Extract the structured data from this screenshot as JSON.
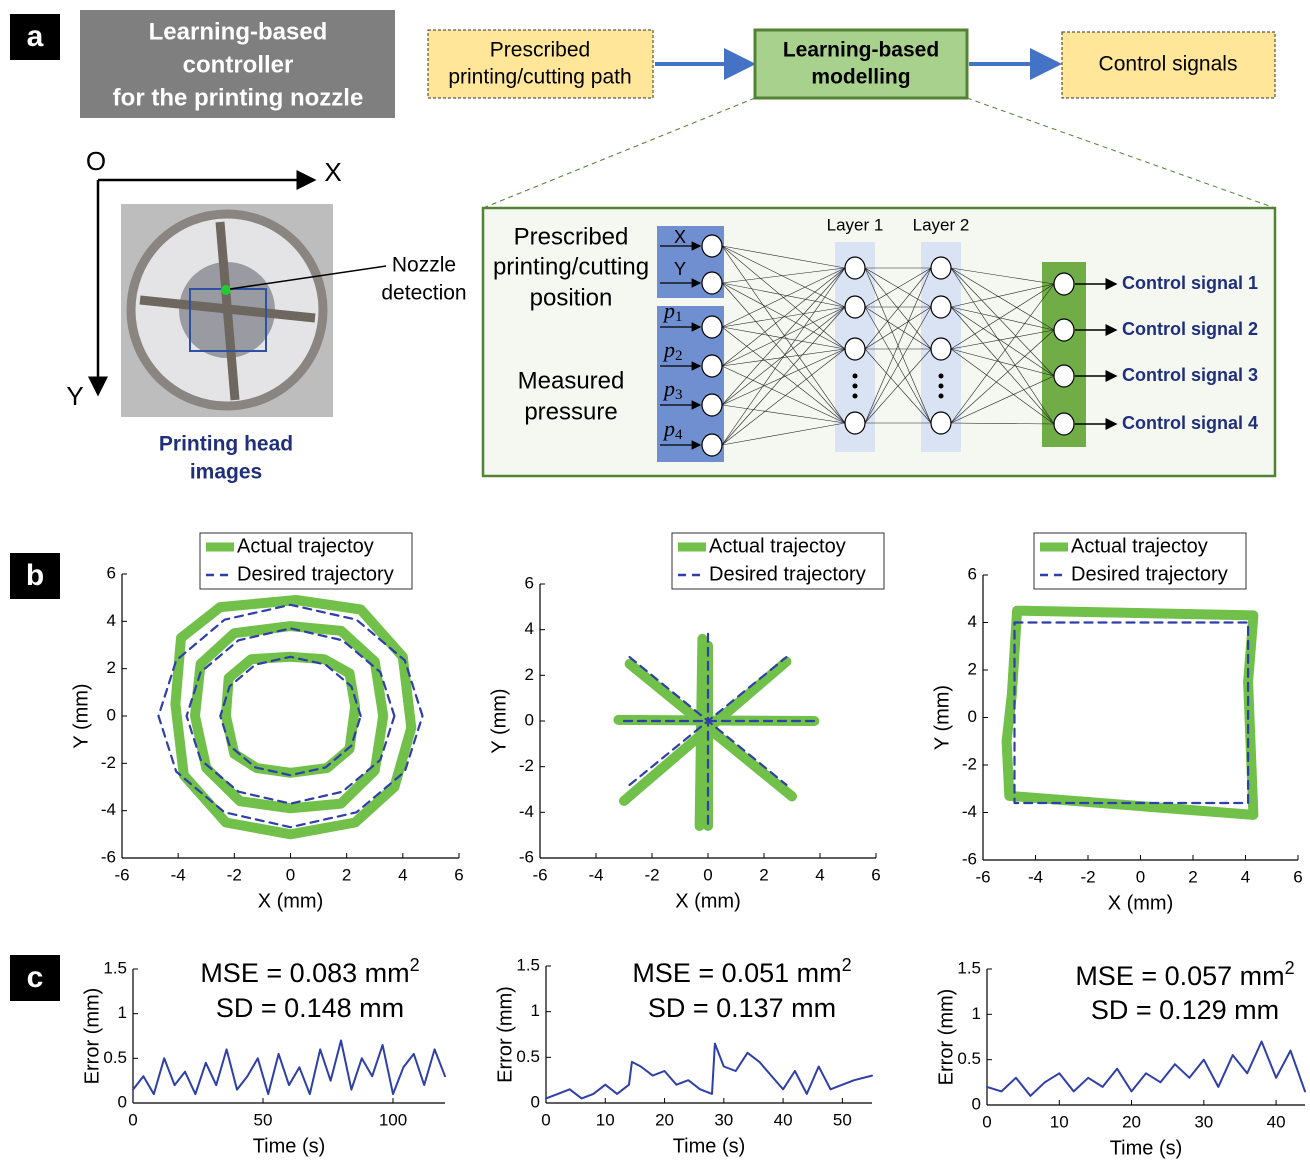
{
  "panel_labels": [
    "a",
    "b",
    "c"
  ],
  "controller_title": [
    "Learning-based",
    "controller",
    "for the printing nozzle"
  ],
  "flow": {
    "input": [
      "Prescribed",
      "printing/cutting path"
    ],
    "model": [
      "Learning-based",
      "modelling"
    ],
    "output": "Control signals"
  },
  "head": {
    "origin": "O",
    "x_axis": "X",
    "y_axis": "Y",
    "callout": [
      "Nozzle",
      "detection"
    ],
    "caption": [
      "Printing head",
      "images"
    ]
  },
  "network": {
    "position_label": [
      "Prescribed",
      "printing/cutting",
      "position"
    ],
    "pressure_label": [
      "Measured",
      "pressure"
    ],
    "inputs": [
      "X",
      "Y"
    ],
    "pressures": [
      {
        "base": "p",
        "sub": "1"
      },
      {
        "base": "p",
        "sub": "2"
      },
      {
        "base": "p",
        "sub": "3"
      },
      {
        "base": "p",
        "sub": "4"
      }
    ],
    "layers": [
      "Layer 1",
      "Layer 2"
    ],
    "outputs": [
      "Control signal 1",
      "Control signal 2",
      "Control signal 3",
      "Control signal 4"
    ]
  },
  "chart_data": [
    {
      "type": "line",
      "xlabel": "X (mm)",
      "ylabel": "Y (mm)",
      "xlim": [
        -6,
        6
      ],
      "ylim": [
        -6,
        6
      ],
      "xticks": [
        -6,
        -4,
        -2,
        0,
        2,
        4,
        6
      ],
      "yticks": [
        -6,
        -4,
        -2,
        0,
        2,
        4,
        6
      ],
      "series": [
        {
          "name": "Actual trajectoy",
          "color": "#70c04a",
          "style": "solid",
          "x": [
            4.3,
            4.0,
            2.5,
            0.2,
            -2.5,
            -3.9,
            -4.1,
            -3.8,
            -2.3,
            0,
            2.3,
            3.7,
            4.3,
            null,
            3.3,
            3.0,
            1.8,
            0,
            -2,
            -3.2,
            -3.4,
            -3.0,
            -1.8,
            0,
            1.8,
            3.0,
            3.3,
            null,
            2.3,
            2.1,
            1.2,
            0,
            -1.4,
            -2.2,
            -2.3,
            -2.0,
            -1.2,
            0,
            1.3,
            2.1,
            2.3
          ],
          "values": [
            -0.5,
            2.5,
            4.5,
            4.9,
            4.6,
            3.3,
            0.5,
            -2.5,
            -4.5,
            -5.0,
            -4.5,
            -3.0,
            -0.5,
            null,
            0,
            2.3,
            3.6,
            3.8,
            3.5,
            2.2,
            0,
            -2.2,
            -3.6,
            -3.9,
            -3.7,
            -2.3,
            0,
            null,
            0.4,
            1.8,
            2.4,
            2.5,
            2.4,
            1.6,
            0,
            -1.6,
            -2.2,
            -2.4,
            -2.2,
            -1.4,
            0.4
          ]
        },
        {
          "name": "Desired trajectory",
          "color": "#2f3fa8",
          "style": "dashed",
          "x": [
            4.7,
            4.07,
            2.35,
            0,
            -2.35,
            -4.07,
            -4.7,
            -4.07,
            -2.35,
            0,
            2.35,
            4.07,
            4.7,
            null,
            3.7,
            3.2,
            1.85,
            0,
            -1.85,
            -3.2,
            -3.7,
            -3.2,
            -1.85,
            0,
            1.85,
            3.2,
            3.7,
            null,
            2.5,
            2.17,
            1.25,
            0,
            -1.25,
            -2.17,
            -2.5,
            -2.17,
            -1.25,
            0,
            1.25,
            2.17,
            2.5
          ],
          "values": [
            0,
            2.35,
            4.07,
            4.7,
            4.07,
            2.35,
            0,
            -2.35,
            -4.07,
            -4.7,
            -4.07,
            -2.35,
            0,
            null,
            0,
            1.85,
            3.2,
            3.7,
            3.2,
            1.85,
            0,
            -1.85,
            -3.2,
            -3.7,
            -3.2,
            -1.85,
            0,
            null,
            0,
            1.25,
            2.17,
            2.5,
            2.17,
            1.25,
            0,
            -1.25,
            -2.17,
            -2.5,
            -2.17,
            -1.25,
            0
          ]
        }
      ]
    },
    {
      "type": "line",
      "xlabel": "X (mm)",
      "ylabel": "Y (mm)",
      "xlim": [
        -6,
        6
      ],
      "ylim": [
        -6,
        6
      ],
      "xticks": [
        -6,
        -4,
        -2,
        0,
        2,
        4,
        6
      ],
      "yticks": [
        -6,
        -4,
        -2,
        0,
        2,
        4,
        6
      ],
      "series": [
        {
          "name": "Actual trajectoy",
          "color": "#70c04a",
          "style": "solid",
          "x": [
            -3.2,
            3.8,
            null,
            -0.3,
            -0.2,
            null,
            -3,
            2.8,
            null,
            -2.8,
            3,
            null,
            0,
            0
          ],
          "values": [
            0.05,
            0,
            null,
            -4.6,
            3.6,
            null,
            -3.5,
            2.6,
            null,
            2.5,
            -3.3,
            null,
            3.3,
            -4.6
          ]
        },
        {
          "name": "Desired trajectory",
          "color": "#2f3fa8",
          "style": "dashed",
          "x": [
            -3,
            3.8,
            null,
            0,
            0,
            null,
            -2.8,
            2.8,
            null,
            -2.8,
            2.8
          ],
          "values": [
            0,
            0,
            null,
            -4.5,
            4,
            null,
            -2.8,
            2.8,
            null,
            2.8,
            -2.8
          ]
        }
      ]
    },
    {
      "type": "line",
      "xlabel": "X (mm)",
      "ylabel": "Y (mm)",
      "xlim": [
        -6,
        6
      ],
      "ylim": [
        -6,
        6
      ],
      "xticks": [
        -6,
        -4,
        -2,
        0,
        2,
        4,
        6
      ],
      "yticks": [
        -6,
        -4,
        -2,
        0,
        2,
        4,
        6
      ],
      "series": [
        {
          "name": "Actual trajectoy",
          "color": "#70c04a",
          "style": "solid",
          "x": [
            -4.7,
            4.3,
            4.1,
            4.3,
            -5,
            -5.1,
            -4.9,
            -4.7
          ],
          "values": [
            4.5,
            4.3,
            1.5,
            -4.1,
            -3.3,
            -1,
            1,
            4.5
          ]
        },
        {
          "name": "Desired trajectory",
          "color": "#2f3fa8",
          "style": "dashed",
          "x": [
            -4.8,
            4.1,
            4.1,
            -4.8,
            -4.8
          ],
          "values": [
            4,
            4,
            -3.6,
            -3.6,
            4
          ]
        }
      ]
    },
    {
      "type": "line",
      "xlabel": "Time (s)",
      "ylabel": "Error (mm)",
      "xlim": [
        0,
        120
      ],
      "ylim": [
        0,
        1.5
      ],
      "xticks": [
        0,
        50,
        100
      ],
      "yticks": [
        0,
        0.5,
        1,
        1.5
      ],
      "annotation": {
        "mse": "MSE = 0.083 mm",
        "exponent": "2",
        "sd": "SD = 0.148 mm"
      },
      "x": [
        0,
        4,
        8,
        12,
        16,
        20,
        24,
        28,
        32,
        36,
        40,
        44,
        48,
        52,
        56,
        60,
        64,
        68,
        72,
        76,
        80,
        84,
        88,
        92,
        96,
        100,
        104,
        108,
        112,
        116,
        120
      ],
      "series": [
        {
          "color": "#2f3fa8",
          "values": [
            0.15,
            0.3,
            0.1,
            0.5,
            0.2,
            0.35,
            0.1,
            0.45,
            0.2,
            0.6,
            0.15,
            0.3,
            0.5,
            0.1,
            0.55,
            0.2,
            0.4,
            0.1,
            0.6,
            0.25,
            0.7,
            0.15,
            0.5,
            0.3,
            0.65,
            0.1,
            0.4,
            0.55,
            0.2,
            0.6,
            0.3
          ]
        }
      ]
    },
    {
      "type": "line",
      "xlabel": "Time (s)",
      "ylabel": "Error (mm)",
      "xlim": [
        0,
        55
      ],
      "ylim": [
        0,
        1.5
      ],
      "xticks": [
        0,
        10,
        20,
        30,
        40,
        50
      ],
      "yticks": [
        0,
        0.5,
        1,
        1.5
      ],
      "annotation": {
        "mse": "MSE = 0.051 mm",
        "exponent": "2",
        "sd": "SD = 0.137 mm"
      },
      "x": [
        0,
        2,
        4,
        6,
        8,
        10,
        12,
        14,
        14.5,
        16,
        18,
        20,
        22,
        24,
        26,
        28,
        28.5,
        30,
        32,
        34,
        36,
        38,
        40,
        42,
        44,
        46,
        48,
        50,
        52,
        55
      ],
      "series": [
        {
          "color": "#2f3fa8",
          "values": [
            0.05,
            0.1,
            0.15,
            0.05,
            0.1,
            0.2,
            0.1,
            0.2,
            0.45,
            0.4,
            0.3,
            0.35,
            0.2,
            0.25,
            0.15,
            0.1,
            0.65,
            0.4,
            0.35,
            0.55,
            0.45,
            0.3,
            0.15,
            0.35,
            0.1,
            0.4,
            0.15,
            0.2,
            0.25,
            0.3
          ]
        }
      ]
    },
    {
      "type": "line",
      "xlabel": "Time (s)",
      "ylabel": "Error (mm)",
      "xlim": [
        0,
        44
      ],
      "ylim": [
        0,
        1.5
      ],
      "xticks": [
        0,
        10,
        20,
        30,
        40
      ],
      "yticks": [
        0,
        0.5,
        1,
        1.5
      ],
      "annotation": {
        "mse": "MSE = 0.057 mm",
        "exponent": "2",
        "sd": "SD = 0.129 mm"
      },
      "x": [
        0,
        2,
        4,
        6,
        8,
        10,
        12,
        14,
        16,
        18,
        20,
        22,
        24,
        26,
        28,
        30,
        32,
        34,
        36,
        38,
        40,
        42,
        44
      ],
      "series": [
        {
          "color": "#2f3fa8",
          "values": [
            0.2,
            0.15,
            0.3,
            0.1,
            0.25,
            0.35,
            0.15,
            0.3,
            0.2,
            0.4,
            0.15,
            0.35,
            0.25,
            0.45,
            0.3,
            0.5,
            0.2,
            0.55,
            0.35,
            0.7,
            0.3,
            0.6,
            0.15
          ]
        }
      ]
    }
  ]
}
